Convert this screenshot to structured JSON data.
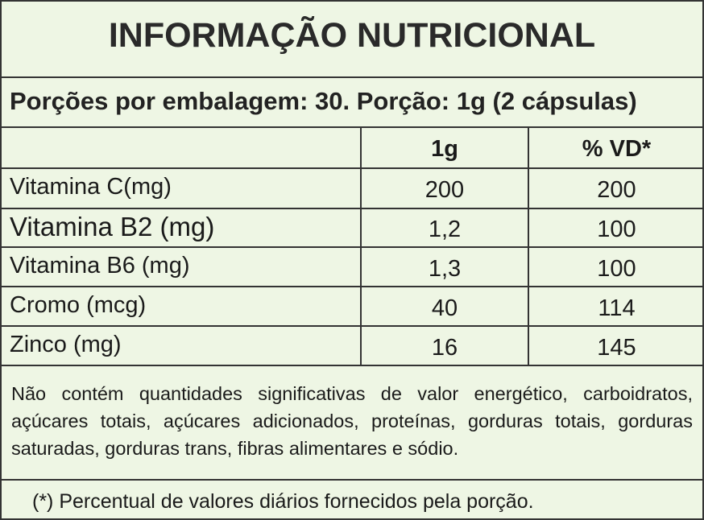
{
  "title": "INFORMAÇÃO NUTRICIONAL",
  "serving": "Porções por embalagem: 30. Porção: 1g (2 cápsulas)",
  "table": {
    "headers": [
      "1g",
      "% VD*"
    ],
    "rows": [
      [
        "Vitamina C(mg)",
        "200",
        "200"
      ],
      [
        "Vitamina B2 (mg)",
        "1,2",
        "100"
      ],
      [
        "Vitamina B6 (mg)",
        "1,3",
        "100"
      ],
      [
        "Cromo (mcg)",
        "40",
        "114"
      ],
      [
        "Zinco (mg)",
        "16",
        "145"
      ]
    ]
  },
  "note": "Não contém quantidades significativas de valor energético, carboidratos, açúcares totais, açúcares adicionados, proteínas, gorduras totais, gorduras saturadas, gorduras trans, fibras alimentares e sódio.",
  "footnote": "(*) Percentual de valores diários fornecidos pela porção."
}
